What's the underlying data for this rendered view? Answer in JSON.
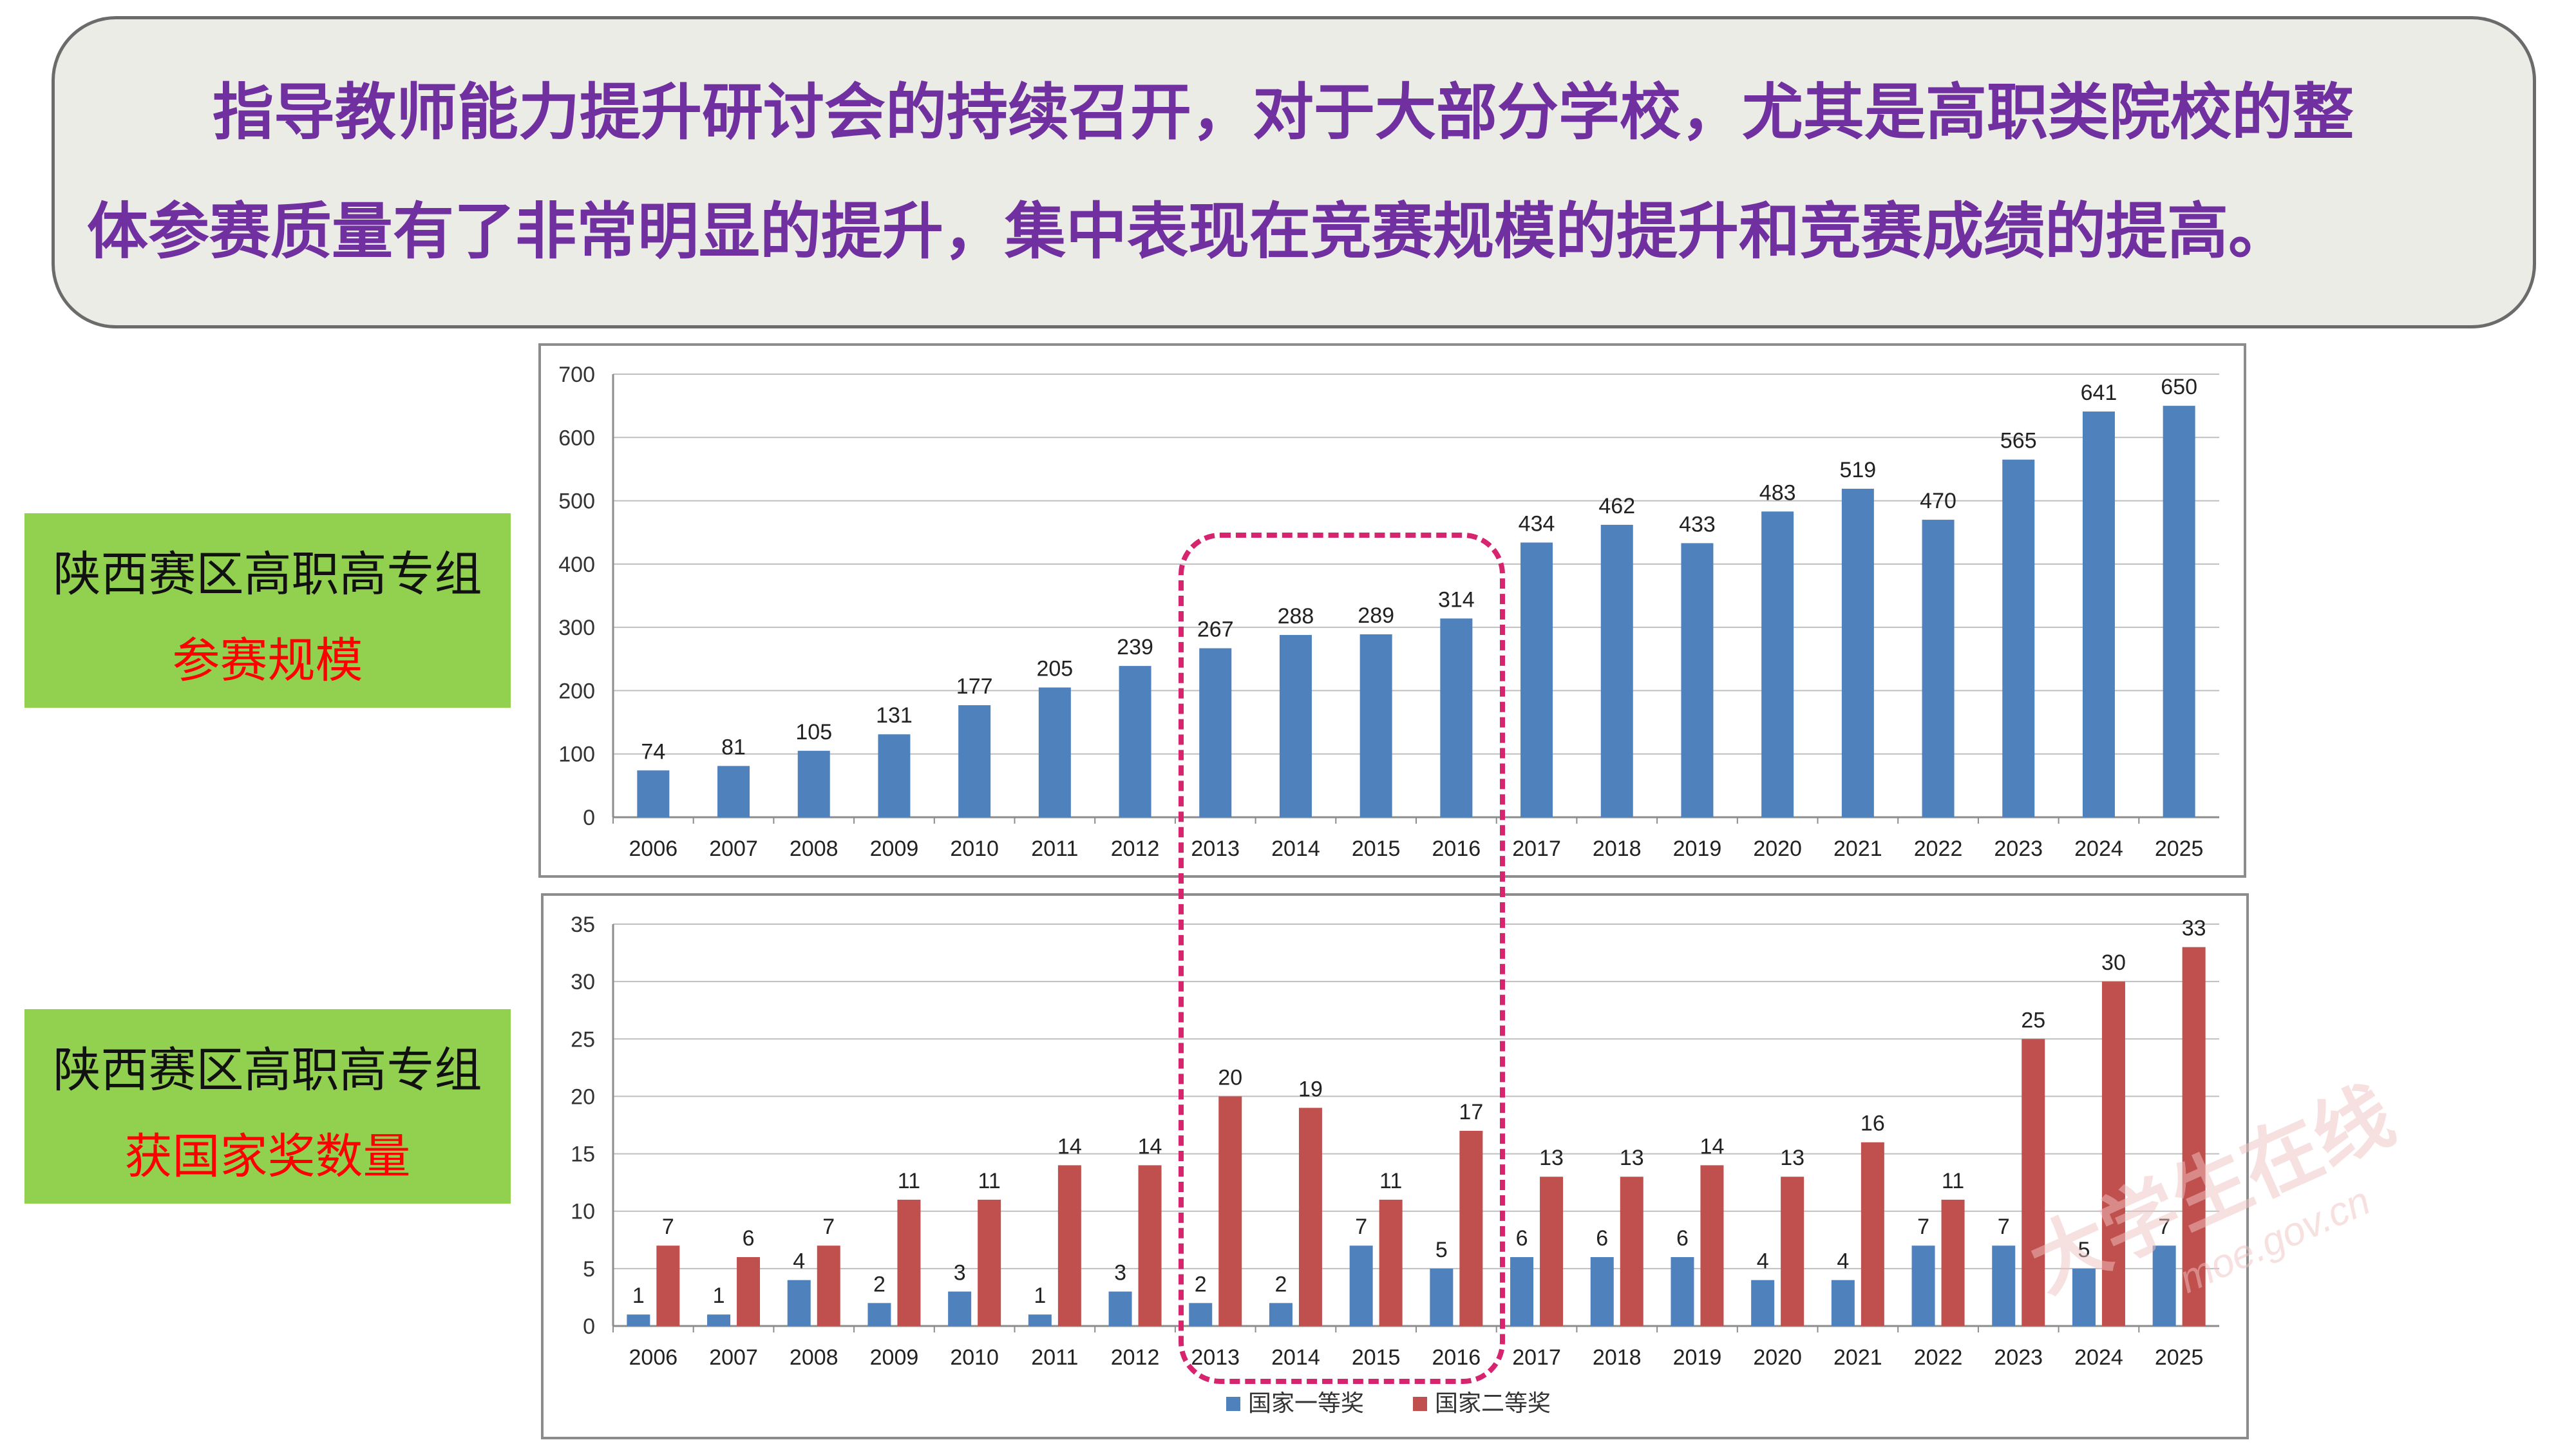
{
  "headline": {
    "line1": "指导教师能力提升研讨会的持续召开，对于大部分学校，尤其是高职类院校的整",
    "line2": "体参赛质量有了非常明显的提升，集中表现在竞赛规模的提升和竞赛成绩的提高。"
  },
  "labels": {
    "participation": {
      "main": "陕西赛区高职高专组",
      "sub": "参赛规模"
    },
    "awards": {
      "main": "陕西赛区高职高专组",
      "sub": "获国家奖数量"
    }
  },
  "watermark": {
    "text": "大学生在线",
    "url": "moe.gov.cn"
  },
  "colors": {
    "bar_blue": "#4f81bd",
    "bar_red": "#c0504d",
    "label_bg": "#92d050",
    "headline_text": "#7030a0",
    "highlight": "#d6246e",
    "sub_label": "#ff0000"
  },
  "chart_data": [
    {
      "type": "bar",
      "title": "",
      "categories": [
        "2006",
        "2007",
        "2008",
        "2009",
        "2010",
        "2011",
        "2012",
        "2013",
        "2014",
        "2015",
        "2016",
        "2017",
        "2018",
        "2019",
        "2020",
        "2021",
        "2022",
        "2023",
        "2024",
        "2025"
      ],
      "series": [
        {
          "values": [
            74,
            81,
            105,
            131,
            177,
            205,
            239,
            267,
            288,
            289,
            314,
            434,
            462,
            433,
            483,
            519,
            470,
            565,
            641,
            650
          ]
        }
      ],
      "ylim": [
        0,
        700
      ],
      "yticks": [
        0,
        100,
        200,
        300,
        400,
        500,
        600,
        700
      ],
      "grid": true,
      "legend": "none",
      "data_labels": true
    },
    {
      "type": "bar",
      "title": "",
      "categories": [
        "2006",
        "2007",
        "2008",
        "2009",
        "2010",
        "2011",
        "2012",
        "2013",
        "2014",
        "2015",
        "2016",
        "2017",
        "2018",
        "2019",
        "2020",
        "2021",
        "2022",
        "2023",
        "2024",
        "2025"
      ],
      "series": [
        {
          "name": "国家一等奖",
          "values": [
            1,
            1,
            4,
            2,
            3,
            1,
            3,
            2,
            2,
            7,
            5,
            6,
            6,
            6,
            4,
            4,
            7,
            7,
            5,
            7
          ]
        },
        {
          "name": "国家二等奖",
          "values": [
            7,
            6,
            7,
            11,
            11,
            14,
            14,
            20,
            19,
            11,
            17,
            13,
            13,
            14,
            13,
            16,
            11,
            25,
            30,
            33
          ]
        }
      ],
      "ylim": [
        0,
        35
      ],
      "yticks": [
        0,
        5,
        10,
        15,
        20,
        25,
        30,
        35
      ],
      "grid": true,
      "legend": "bottom",
      "data_labels": true
    }
  ]
}
